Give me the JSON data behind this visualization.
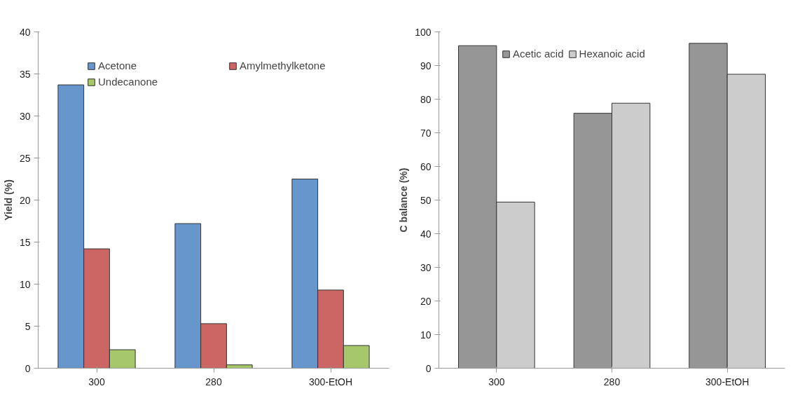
{
  "chart_data": [
    {
      "type": "bar",
      "ylabel": "Yield (%)",
      "categories": [
        "300",
        "280",
        "300-EtOH"
      ],
      "ylim": [
        0,
        40
      ],
      "yticks": [
        0,
        5,
        10,
        15,
        20,
        25,
        30,
        35,
        40
      ],
      "grid": false,
      "legend": "top",
      "series": [
        {
          "name": "Acetone",
          "color": "#6796cc",
          "values": [
            33.7,
            17.2,
            22.5
          ]
        },
        {
          "name": "Amylmethylketone",
          "color": "#cc6664",
          "values": [
            14.2,
            5.3,
            9.3
          ]
        },
        {
          "name": "Undecanone",
          "color": "#a6c86a",
          "values": [
            2.2,
            0.4,
            2.7
          ]
        }
      ]
    },
    {
      "type": "bar",
      "ylabel": "C balance (%)",
      "categories": [
        "300",
        "280",
        "300-EtOH"
      ],
      "ylim": [
        0,
        100
      ],
      "yticks": [
        0,
        10,
        20,
        30,
        40,
        50,
        60,
        70,
        80,
        90,
        100
      ],
      "grid": false,
      "legend": "top",
      "series": [
        {
          "name": "Acetic acid",
          "color": "#969696",
          "values": [
            95.9,
            75.8,
            96.6
          ]
        },
        {
          "name": "Hexanoic acid",
          "color": "#cccccc",
          "values": [
            49.4,
            78.8,
            87.4
          ]
        }
      ]
    }
  ]
}
